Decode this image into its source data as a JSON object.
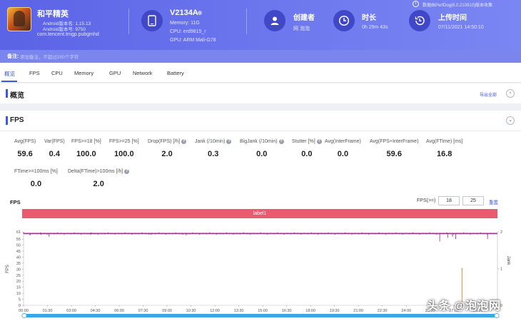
{
  "app": {
    "name": "和平精英",
    "android_version": "Android版本名: 1.15.13",
    "android_code": "Android版本号: 9750",
    "package": "com.tencent.tmgp.pubgmhd"
  },
  "device": {
    "name": "V2134A",
    "memory": "Memory: 11G",
    "cpu": "CPU: erd9815_r",
    "gpu": "GPU: ARM Mali-G78"
  },
  "stats": {
    "creator_title": "创建者",
    "creator_value": "网 泡泡",
    "duration_title": "时长",
    "duration_value": "0h 29m 43s",
    "upload_title": "上传时间",
    "upload_value": "07/11/2021 14:50:10"
  },
  "top_right_text": "数据由PerfDog(6.0.210910)版本收集",
  "note": {
    "label": "备注:",
    "placeholder": "添加备注，不超过200个字符"
  },
  "tabs": [
    {
      "label": "概览"
    },
    {
      "label": "FPS"
    },
    {
      "label": "CPU"
    },
    {
      "label": "Memory"
    },
    {
      "label": "GPU"
    },
    {
      "label": "Network"
    },
    {
      "label": "Battery"
    }
  ],
  "overview": {
    "title": "概览",
    "export_label": "导出全部"
  },
  "fps": {
    "title": "FPS",
    "metrics_row1": [
      {
        "label": "Avg(FPS)",
        "value": "59.6",
        "help": false
      },
      {
        "label": "Var(FPS)",
        "value": "0.4",
        "help": false
      },
      {
        "label": "FPS>=18 [%]",
        "value": "100.0",
        "help": false
      },
      {
        "label": "FPS>=25 [%]",
        "value": "100.0",
        "help": false
      },
      {
        "label": "Drop(FPS) [/h]",
        "value": "2.0",
        "help": true
      },
      {
        "label": "Jank (/10min)",
        "value": "0.3",
        "help": true
      },
      {
        "label": "BigJank (/10min)",
        "value": "0.0",
        "help": true
      },
      {
        "label": "Stutter [%]",
        "value": "0.0",
        "help": true
      },
      {
        "label": "Avg(InterFrame)",
        "value": "0.0",
        "help": false
      },
      {
        "label": "Avg(FPS+InterFrame)",
        "value": "59.6",
        "help": false
      },
      {
        "label": "Avg(FTime) [ms]",
        "value": "16.8",
        "help": false
      }
    ],
    "metrics_row2": [
      {
        "label": "FTime>=100ms [%]",
        "value": "0.0",
        "help": false
      },
      {
        "label": "Delta(FTime)>100ms [/h]",
        "value": "2.0",
        "help": true
      }
    ],
    "chart_label": "FPS",
    "threshold_label": "FPS(>=)",
    "threshold_1": "18",
    "threshold_2": "25",
    "reset_label": "重置",
    "band_label": "label1"
  },
  "watermark": "头条 @泡泡网",
  "colors": {
    "header": "#5b63e6",
    "fps_line": "#c026b8",
    "jank_line": "#f08a3c",
    "label_band": "#ea5b6f",
    "scrollbar": "#3aa7e8"
  },
  "chart_data": {
    "type": "line",
    "ylabel": "FPS",
    "y2label": "Jank",
    "ylim": [
      0,
      61
    ],
    "y2lim": [
      0,
      2
    ],
    "yticks": [
      61,
      55,
      50,
      45,
      40,
      35,
      30,
      25,
      20,
      15,
      10,
      5,
      0
    ],
    "y2ticks": [
      2,
      1,
      0
    ],
    "xticks": [
      "00:00",
      "01:30",
      "03:00",
      "04:30",
      "06:00",
      "07:30",
      "09:00",
      "10:30",
      "12:00",
      "13:30",
      "15:00",
      "16:30",
      "18:00",
      "19:30",
      "21:00",
      "22:30",
      "24:00",
      "25:30",
      "27:00",
      "28:30"
    ],
    "x_range_min": [
      0,
      29.72
    ],
    "series": [
      {
        "name": "FPS",
        "baseline": 59.6,
        "dips": [
          {
            "t": 0.4,
            "v": 58
          },
          {
            "t": 1.1,
            "v": 58.5
          },
          {
            "t": 1.6,
            "v": 57
          },
          {
            "t": 4.2,
            "v": 58.5
          },
          {
            "t": 8.0,
            "v": 58.5
          },
          {
            "t": 10.2,
            "v": 58
          },
          {
            "t": 19.3,
            "v": 59.2
          },
          {
            "t": 26.1,
            "v": 53
          },
          {
            "t": 26.6,
            "v": 56
          },
          {
            "t": 26.9,
            "v": 57
          },
          {
            "t": 27.1,
            "v": 55
          },
          {
            "t": 29.1,
            "v": 55
          }
        ]
      },
      {
        "name": "Jank",
        "spikes": [
          {
            "t": 27.5,
            "v": 1
          }
        ]
      }
    ]
  }
}
